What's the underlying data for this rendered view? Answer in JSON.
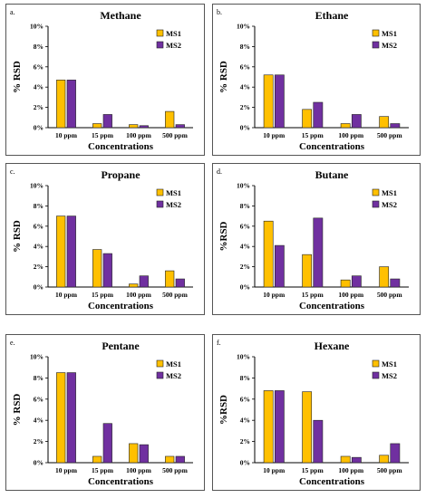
{
  "colors": {
    "MS1": "#FFC000",
    "MS2": "#7030A0"
  },
  "chart_data": [
    {
      "type": "bar",
      "panel_letter": "a.",
      "title": "Methane",
      "categories": [
        "10 ppm",
        "15 ppm",
        "100 ppm",
        "500 ppm"
      ],
      "series": [
        {
          "name": "MS1",
          "values": [
            4.7,
            0.4,
            0.3,
            1.6
          ]
        },
        {
          "name": "MS2",
          "values": [
            4.7,
            1.3,
            0.2,
            0.3
          ]
        }
      ],
      "xlabel": "Concentrations",
      "ylabel": "% RSD",
      "ylim": [
        0,
        10
      ],
      "yticks": [
        "0%",
        "2%",
        "4%",
        "6%",
        "8%",
        "10%"
      ],
      "legend": "top-right",
      "grid": false
    },
    {
      "type": "bar",
      "panel_letter": "b.",
      "title": "Ethane",
      "categories": [
        "10 ppm",
        "15 ppm",
        "100 ppm",
        "500 ppm"
      ],
      "series": [
        {
          "name": "MS1",
          "values": [
            5.2,
            1.8,
            0.4,
            1.1
          ]
        },
        {
          "name": "MS2",
          "values": [
            5.2,
            2.5,
            1.3,
            0.4
          ]
        }
      ],
      "xlabel": "Concentrations",
      "ylabel": "% RSD",
      "ylim": [
        0,
        10
      ],
      "yticks": [
        "0%",
        "2%",
        "4%",
        "6%",
        "8%",
        "10%"
      ],
      "legend": "top-right",
      "grid": false
    },
    {
      "type": "bar",
      "panel_letter": "c.",
      "title": "Propane",
      "categories": [
        "10 ppm",
        "15 ppm",
        "100 ppm",
        "500 ppm"
      ],
      "series": [
        {
          "name": "MS1",
          "values": [
            7.0,
            3.7,
            0.3,
            1.6
          ]
        },
        {
          "name": "MS2",
          "values": [
            7.0,
            3.3,
            1.1,
            0.8
          ]
        }
      ],
      "xlabel": "Concentrations",
      "ylabel": "% RSD",
      "ylim": [
        0,
        10
      ],
      "yticks": [
        "0%",
        "2%",
        "4%",
        "6%",
        "8%",
        "10%"
      ],
      "legend": "top-right",
      "grid": false
    },
    {
      "type": "bar",
      "panel_letter": "d.",
      "title": "Butane",
      "categories": [
        "10 ppm",
        "15 ppm",
        "100 ppm",
        "500 ppm"
      ],
      "series": [
        {
          "name": "MS1",
          "values": [
            6.5,
            3.2,
            0.7,
            2.0
          ]
        },
        {
          "name": "MS2",
          "values": [
            4.1,
            6.8,
            1.1,
            0.8
          ]
        }
      ],
      "xlabel": "Concentrations",
      "ylabel": "%RSD",
      "ylim": [
        0,
        10
      ],
      "yticks": [
        "0%",
        "2%",
        "4%",
        "6%",
        "8%",
        "10%"
      ],
      "legend": "top-right",
      "grid": false
    },
    {
      "type": "bar",
      "panel_letter": "e.",
      "title": "Pentane",
      "categories": [
        "10 ppm",
        "15 ppm",
        "100 ppm",
        "500 ppm"
      ],
      "series": [
        {
          "name": "MS1",
          "values": [
            8.5,
            0.6,
            1.8,
            0.6
          ]
        },
        {
          "name": "MS2",
          "values": [
            8.5,
            3.7,
            1.7,
            0.6
          ]
        }
      ],
      "xlabel": "Concentrations",
      "ylabel": "% RSD",
      "ylim": [
        0,
        10
      ],
      "yticks": [
        "0%",
        "2%",
        "4%",
        "6%",
        "8%",
        "10%"
      ],
      "legend": "top-right",
      "grid": false
    },
    {
      "type": "bar",
      "panel_letter": "f.",
      "title": "Hexane",
      "categories": [
        "10 ppm",
        "15 ppm",
        "100 ppm",
        "500 ppm"
      ],
      "series": [
        {
          "name": "MS1",
          "values": [
            6.8,
            6.7,
            0.6,
            0.7
          ]
        },
        {
          "name": "MS2",
          "values": [
            6.8,
            4.0,
            0.5,
            1.8
          ]
        }
      ],
      "xlabel": "Concentrations",
      "ylabel": "%RSD",
      "ylim": [
        0,
        10
      ],
      "yticks": [
        "0%",
        "2%",
        "4%",
        "6%",
        "8%",
        "10%"
      ],
      "legend": "top-right",
      "grid": false
    }
  ]
}
